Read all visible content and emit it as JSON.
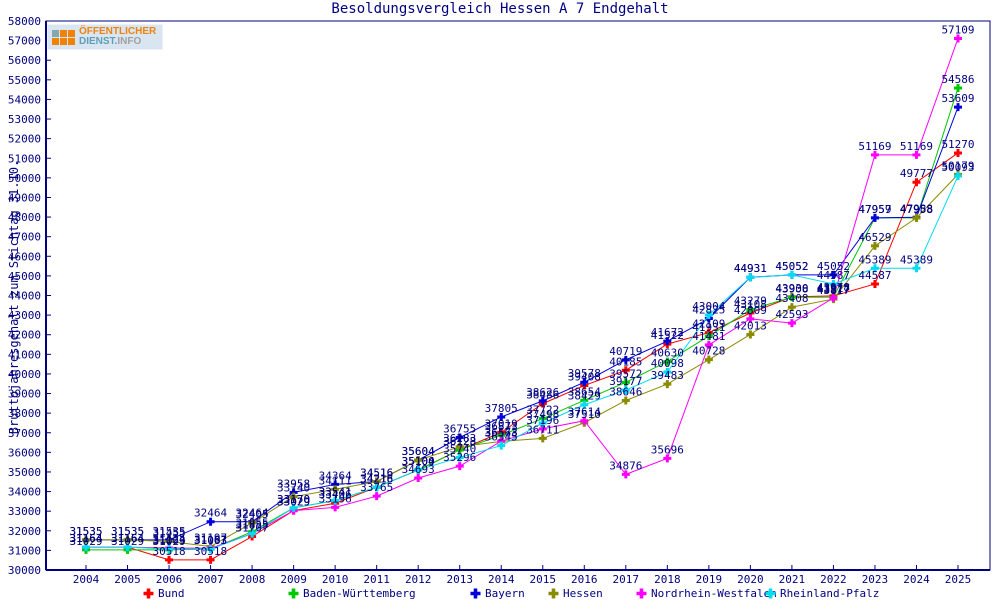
{
  "title": "Besoldungsvergleich Hessen A 7 Endgehalt",
  "logo": {
    "line1": "ÖFFENTLICHER",
    "line2_part1": "DIENST.",
    "line2_part2": "INFO"
  },
  "colors": {
    "axis_and_text": "#000080",
    "background": "#ffffff"
  },
  "chart_data": {
    "type": "line",
    "title": "Besoldungsvergleich Hessen A 7 Endgehalt",
    "xlabel": "",
    "ylabel": "Bruttojahresgehalt zum Stichtag 31.10.",
    "ylim": [
      30000,
      58000
    ],
    "ytick_step": 1000,
    "grid": false,
    "point_value_labels": true,
    "legend_position": "bottom",
    "x": [
      2004,
      2005,
      2006,
      2007,
      2008,
      2009,
      2010,
      2011,
      2012,
      2013,
      2014,
      2015,
      2016,
      2017,
      2018,
      2019,
      2020,
      2021,
      2022,
      2023,
      2024,
      2025
    ],
    "series": [
      {
        "name": "Bund",
        "color": "#ff0000",
        "values": [
          31164,
          31164,
          30518,
          30518,
          31707,
          33029,
          33406,
          34218,
          35100,
          36128,
          37019,
          38486,
          39408,
          40185,
          41522,
          42109,
          43108,
          43930,
          43978,
          44587,
          49777,
          51270
        ]
      },
      {
        "name": "Baden-Württemberg",
        "color": "#00c800",
        "values": [
          31029,
          31029,
          31029,
          31063,
          31955,
          33170,
          33541,
          34216,
          35104,
          36123,
          36873,
          37722,
          38654,
          39572,
          40630,
          41931,
          43279,
          43908,
          43917,
          47957,
          47958,
          54586
        ]
      },
      {
        "name": "Bayern",
        "color": "#0000dd",
        "values": [
          31535,
          31535,
          31535,
          32464,
          32464,
          33958,
          34364,
          34516,
          35604,
          36755,
          37805,
          38626,
          39578,
          40719,
          41672,
          42825,
          44931,
          45052,
          45052,
          47959,
          47988,
          53609
        ]
      },
      {
        "name": "Hessen",
        "color": "#8b8b00",
        "values": [
          31535,
          31535,
          31455,
          31197,
          32405,
          33740,
          34111,
          34516,
          35604,
          36283,
          36563,
          36711,
          37510,
          38646,
          39483,
          40728,
          42013,
          43408,
          43817,
          46529,
          47958,
          50179
        ]
      },
      {
        "name": "Nordrhein-Westfalen",
        "color": "#ff00ff",
        "values": [
          31164,
          31164,
          31124,
          31107,
          31855,
          33029,
          33196,
          33765,
          34693,
          35296,
          36573,
          37196,
          37614,
          34876,
          35696,
          41481,
          42809,
          42593,
          43877,
          51169,
          51169,
          57109
        ]
      },
      {
        "name": "Rheinland-Pfalz",
        "color": "#00dcf0",
        "values": [
          31164,
          31164,
          31063,
          31063,
          31855,
          33170,
          33541,
          34216,
          35104,
          35740,
          36345,
          37498,
          38429,
          39177,
          40098,
          43004,
          44931,
          45052,
          44587,
          45389,
          45389,
          50093
        ]
      }
    ]
  }
}
